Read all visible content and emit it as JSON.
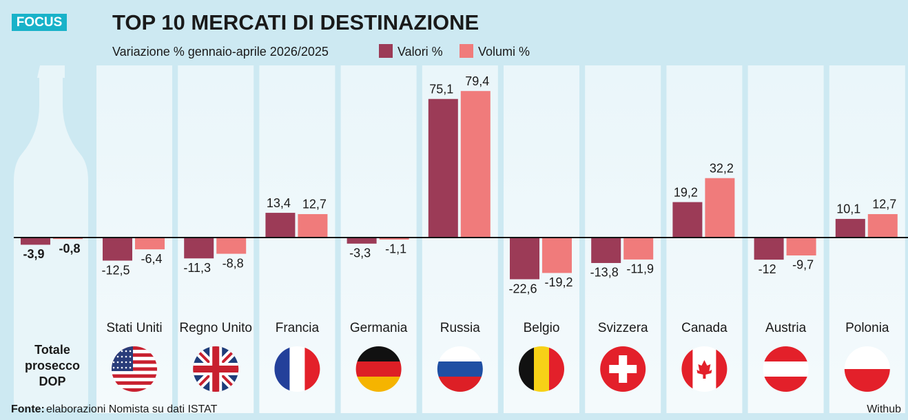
{
  "badge": "FOCUS",
  "chart_data": {
    "type": "bar",
    "title": "TOP 10 MERCATI DI DESTINAZIONE",
    "subtitle": "Variazione % gennaio-aprile 2026/2025",
    "categories": [
      "Totale prosecco DOP",
      "Stati Uniti",
      "Regno Unito",
      "Francia",
      "Germania",
      "Russia",
      "Belgio",
      "Svizzera",
      "Canada",
      "Austria",
      "Polonia"
    ],
    "series": [
      {
        "name": "Valori %",
        "color": "#9c3b57",
        "values": [
          -3.9,
          -12.5,
          -11.3,
          13.4,
          -3.3,
          75.1,
          -22.6,
          -13.8,
          19.2,
          -12,
          10.1
        ],
        "value_labels": [
          "-3,9",
          "-12,5",
          "-11,3",
          "13,4",
          "-3,3",
          "75,1",
          "-22,6",
          "-13,8",
          "19,2",
          "-12",
          "10,1"
        ]
      },
      {
        "name": "Volumi %",
        "color": "#f07b7b",
        "values": [
          -0.8,
          -6.4,
          -8.8,
          12.7,
          -1.1,
          79.4,
          -19.2,
          -11.9,
          32.2,
          -9.7,
          12.7
        ],
        "value_labels": [
          "-0,8",
          "-6,4",
          "-8,8",
          "12,7",
          "-1,1",
          "79,4",
          "-19,2",
          "-11,9",
          "32,2",
          "-9,7",
          "12,7"
        ]
      }
    ]
  },
  "source_label": "Fonte:",
  "source": "elaborazioni Nomista su dati ISTAT",
  "credit": "Withub"
}
